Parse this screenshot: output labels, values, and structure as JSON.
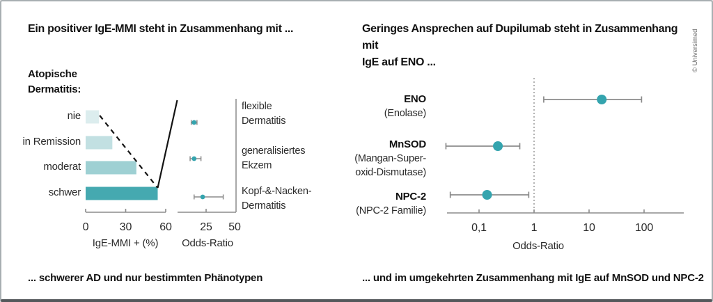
{
  "credit": "© Universimed",
  "colors": {
    "accent_teal": "#34a4ae",
    "bar_shades": [
      "#dcedee",
      "#c2e0e2",
      "#9ed0d3",
      "#45a9b0"
    ],
    "axis_gray": "#8b8b8b",
    "trend_black": "#141414",
    "reference_dotted": "#999999"
  },
  "panels": {
    "left": {
      "title": "Ein positiver IgE-MMI steht in Zusammenhang mit ...",
      "group_label_lines": [
        "Atopische",
        "Dermatitis:"
      ],
      "caption": "... schwerer AD und nur bestimmten Phänotypen"
    },
    "right": {
      "title_lines": [
        "Geringes Ansprechen auf Dupilumab steht in Zusammenhang mit",
        "IgE auf ENO ..."
      ],
      "caption": "... und im umgekehrten Zusammenhang mit IgE auf MnSOD und NPC-2"
    }
  },
  "chart_data": [
    {
      "id": "ige-mmi-bars",
      "type": "bar",
      "orientation": "horizontal",
      "group_title": "Atopische Dermatitis:",
      "categories": [
        "nie",
        "in Remission",
        "moderat",
        "schwer"
      ],
      "values": [
        10,
        20,
        38,
        54
      ],
      "xlabel": "IgE-MMI + (%)",
      "xticks": [
        0,
        30,
        60
      ],
      "xlim": [
        0,
        60
      ],
      "annotation": "dashed trend line falls across bar tips, solid line rises toward odds-ratio plot"
    },
    {
      "id": "phenotype-odds",
      "type": "scatter",
      "subtype": "forest-plot",
      "scale": "linear",
      "categories": [
        "flexible Dermatitis",
        "generalisiertes Ekzem",
        "Kopf-&-Nacken-Dermatitis"
      ],
      "category_lines": [
        [
          "flexible",
          "Dermatitis"
        ],
        [
          "generalisiertes",
          "Ekzem"
        ],
        [
          "Kopf-&-Nacken-",
          "Dermatitis"
        ]
      ],
      "values": [
        14.5,
        14.5,
        22
      ],
      "ci_low": [
        12,
        11,
        14.5
      ],
      "ci_high": [
        17,
        20.5,
        40
      ],
      "xlabel": "Odds-Ratio",
      "xticks": [
        25,
        50
      ],
      "xtick_labels": [
        "25",
        "50"
      ],
      "xlim": [
        0,
        50
      ]
    },
    {
      "id": "dupilumab-odds",
      "type": "scatter",
      "subtype": "forest-plot",
      "scale": "log",
      "categories": [
        "ENO (Enolase)",
        "MnSOD (Mangan-Superoxid-Dismutase)",
        "NPC-2 (NPC-2 Familie)"
      ],
      "category_lines": [
        [
          "ENO",
          "(Enolase)"
        ],
        [
          "MnSOD",
          "(Mangan-Super-",
          "oxid-Dismutase)"
        ],
        [
          "NPC-2",
          "(NPC-2 Familie)"
        ]
      ],
      "values": [
        17,
        0.22,
        0.14
      ],
      "ci_low": [
        1.5,
        0.025,
        0.03
      ],
      "ci_high": [
        90,
        0.55,
        0.8
      ],
      "xlabel": "Odds-Ratio",
      "xticks": [
        0.1,
        1,
        10,
        100
      ],
      "xtick_labels": [
        "0,1",
        "1",
        "10",
        "100"
      ],
      "xlim": [
        0.02,
        500
      ],
      "reference_line": 1
    }
  ]
}
